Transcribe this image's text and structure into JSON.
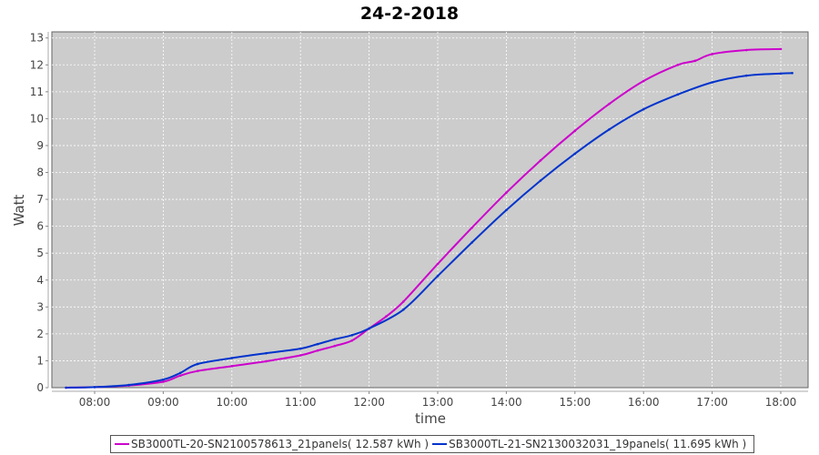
{
  "chart_data": {
    "type": "line",
    "title": "24-2-2018",
    "xlabel": "time",
    "ylabel": "Watt",
    "xlim": [
      "07:22",
      "18:24"
    ],
    "ylim": [
      0,
      13.5
    ],
    "yticks": [
      0,
      1,
      2,
      3,
      4,
      5,
      6,
      7,
      8,
      9,
      10,
      11,
      12,
      13
    ],
    "xticks": [
      "08:00",
      "09:00",
      "10:00",
      "11:00",
      "12:00",
      "13:00",
      "14:00",
      "15:00",
      "16:00",
      "17:00",
      "18:00"
    ],
    "grid": true,
    "legend_placement": "bottom",
    "background": "#cccccc",
    "series": [
      {
        "name": "SB3000TL-20-SN2100578613_21panels( 12.587 kWh )",
        "color": "#cc00cc",
        "x": [
          "07:35",
          "08:00",
          "08:30",
          "09:00",
          "09:15",
          "09:30",
          "10:00",
          "10:30",
          "11:00",
          "11:15",
          "11:30",
          "11:45",
          "12:00",
          "12:15",
          "12:30",
          "13:00",
          "13:30",
          "14:00",
          "14:30",
          "15:00",
          "15:30",
          "16:00",
          "16:30",
          "16:45",
          "17:00",
          "17:30",
          "18:00"
        ],
        "values": [
          0,
          0.02,
          0.08,
          0.22,
          0.45,
          0.62,
          0.8,
          0.98,
          1.2,
          1.38,
          1.55,
          1.75,
          2.2,
          2.65,
          3.2,
          4.6,
          5.95,
          7.25,
          8.45,
          9.55,
          10.55,
          11.4,
          12.0,
          12.15,
          12.4,
          12.55,
          12.587
        ]
      },
      {
        "name": "SB3000TL-21-SN2130032031_19panels( 11.695 kWh )",
        "color": "#0033cc",
        "x": [
          "07:35",
          "08:00",
          "08:30",
          "09:00",
          "09:15",
          "09:30",
          "10:00",
          "10:30",
          "11:00",
          "11:15",
          "11:30",
          "11:45",
          "12:00",
          "12:30",
          "13:00",
          "13:30",
          "14:00",
          "14:30",
          "15:00",
          "15:30",
          "16:00",
          "16:30",
          "17:00",
          "17:30",
          "18:00",
          "18:10"
        ],
        "values": [
          0,
          0.02,
          0.1,
          0.3,
          0.55,
          0.88,
          1.1,
          1.28,
          1.45,
          1.62,
          1.8,
          1.95,
          2.2,
          2.9,
          4.15,
          5.4,
          6.6,
          7.7,
          8.7,
          9.6,
          10.35,
          10.9,
          11.35,
          11.6,
          11.68,
          11.695
        ]
      }
    ]
  }
}
